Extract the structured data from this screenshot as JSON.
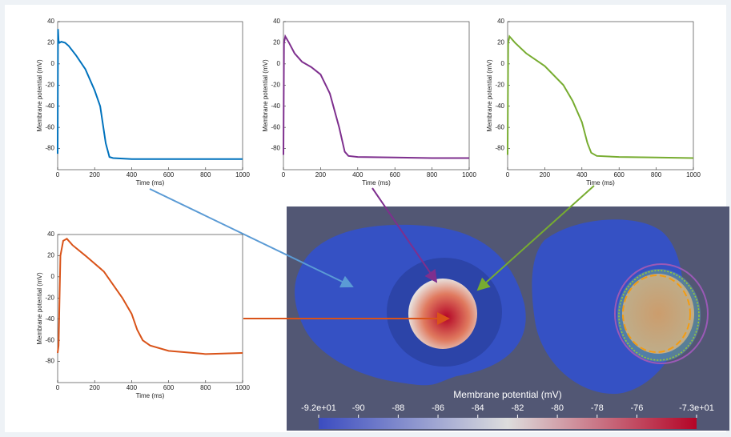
{
  "chart_data": [
    {
      "type": "line",
      "xlabel": "Time (ms)",
      "ylabel": "Membrane potential (mV)",
      "x": [
        0,
        2,
        5,
        10,
        20,
        40,
        60,
        100,
        150,
        200,
        230,
        260,
        280,
        300,
        400,
        600,
        800,
        1000
      ],
      "series": [
        {
          "color": "#0072bd",
          "values": [
            -85,
            33,
            22,
            20,
            21,
            20,
            17,
            8,
            -5,
            -25,
            -40,
            -75,
            -88,
            -89,
            -90,
            -90,
            -90,
            -90
          ]
        }
      ],
      "xlim": [
        0,
        1000
      ],
      "xticks": [
        0,
        200,
        400,
        600,
        800,
        1000
      ],
      "ylim": [
        -100,
        40
      ],
      "yticks": [
        -80,
        -60,
        -40,
        -20,
        0,
        20,
        40
      ]
    },
    {
      "type": "line",
      "xlabel": "Time (ms)",
      "ylabel": "Membrane potential (mV)",
      "x": [
        0,
        3,
        10,
        30,
        60,
        100,
        150,
        200,
        250,
        300,
        330,
        350,
        400,
        600,
        800,
        1000
      ],
      "series": [
        {
          "color": "#7e2f8e",
          "values": [
            -86,
            20,
            26,
            20,
            10,
            2,
            -3,
            -10,
            -28,
            -60,
            -83,
            -87,
            -88,
            -88.5,
            -89,
            -89
          ]
        }
      ],
      "xlim": [
        0,
        1000
      ],
      "xticks": [
        0,
        200,
        400,
        600,
        800,
        1000
      ],
      "ylim": [
        -100,
        40
      ],
      "yticks": [
        -80,
        -60,
        -40,
        -20,
        0,
        20,
        40
      ]
    },
    {
      "type": "line",
      "xlabel": "Time (ms)",
      "ylabel": "Membrane potential (mV)",
      "x": [
        0,
        3,
        10,
        40,
        100,
        150,
        200,
        300,
        350,
        400,
        430,
        450,
        480,
        600,
        800,
        1000
      ],
      "series": [
        {
          "color": "#77ac30",
          "values": [
            -86,
            20,
            26,
            20,
            10,
            4,
            -2,
            -20,
            -35,
            -55,
            -75,
            -84,
            -87,
            -88,
            -88.5,
            -89
          ]
        }
      ],
      "xlim": [
        0,
        1000
      ],
      "xticks": [
        0,
        200,
        400,
        600,
        800,
        1000
      ],
      "ylim": [
        -100,
        40
      ],
      "yticks": [
        -80,
        -60,
        -40,
        -20,
        0,
        20,
        40
      ]
    },
    {
      "type": "line",
      "xlabel": "Time (ms)",
      "ylabel": "Membrane potential (mV)",
      "x": [
        0,
        5,
        15,
        30,
        50,
        80,
        150,
        250,
        350,
        400,
        430,
        460,
        500,
        600,
        800,
        1000
      ],
      "series": [
        {
          "color": "#d95319",
          "values": [
            -72,
            -65,
            20,
            34,
            36,
            30,
            20,
            5,
            -20,
            -35,
            -50,
            -60,
            -65,
            -70,
            -73,
            -72
          ]
        }
      ],
      "xlim": [
        0,
        1000
      ],
      "xticks": [
        0,
        200,
        400,
        600,
        800,
        1000
      ],
      "ylim": [
        -100,
        40
      ],
      "yticks": [
        -80,
        -60,
        -40,
        -20,
        0,
        20,
        40
      ]
    },
    {
      "type": "colorbar",
      "title": "Membrane potential (mV)",
      "colors": [
        "#3b4cc0",
        "#dddddd",
        "#b40426"
      ],
      "xlim": [
        -92,
        -73
      ],
      "xticks": [
        {
          "value": -92,
          "label": "-9.2e+01"
        },
        -90,
        -88,
        -86,
        -84,
        -82,
        -80,
        -78,
        -76,
        {
          "value": -73,
          "label": "-7.3e+01"
        }
      ]
    }
  ]
}
